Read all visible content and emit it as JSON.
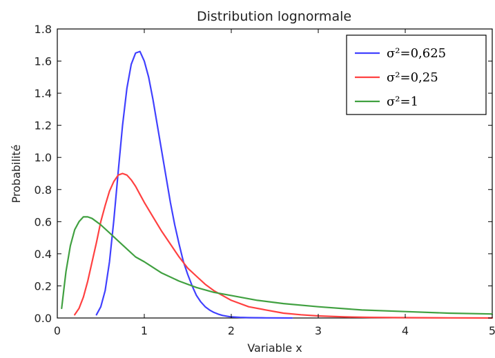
{
  "chart_data": {
    "type": "line",
    "title": "Distribution lognormale",
    "xlabel": "Variable x",
    "ylabel": "Probabilité",
    "xlim": [
      0,
      5
    ],
    "ylim": [
      0,
      1.8
    ],
    "xticks": [
      0,
      1,
      2,
      3,
      4,
      5
    ],
    "yticks": [
      0.0,
      0.2,
      0.4,
      0.6,
      0.8,
      1.0,
      1.2,
      1.4,
      1.6,
      1.8
    ],
    "xtick_labels": [
      "0",
      "1",
      "2",
      "3",
      "4",
      "5"
    ],
    "ytick_labels": [
      "0.0",
      "0.2",
      "0.4",
      "0.6",
      "0.8",
      "1.0",
      "1.2",
      "1.4",
      "1.6",
      "1.8"
    ],
    "grid": false,
    "legend_position": "top-right",
    "series": [
      {
        "name": "σ²=0,625",
        "color": "#4040ff",
        "x": [
          0.45,
          0.5,
          0.55,
          0.6,
          0.65,
          0.7,
          0.75,
          0.8,
          0.85,
          0.9,
          0.95,
          1.0,
          1.05,
          1.1,
          1.15,
          1.2,
          1.25,
          1.3,
          1.35,
          1.4,
          1.45,
          1.5,
          1.55,
          1.6,
          1.65,
          1.7,
          1.75,
          1.8,
          1.85,
          1.9,
          1.95,
          2.0,
          2.1,
          2.2,
          2.4,
          2.7
        ],
        "y": [
          0.02,
          0.07,
          0.17,
          0.35,
          0.61,
          0.91,
          1.2,
          1.43,
          1.58,
          1.65,
          1.66,
          1.6,
          1.5,
          1.36,
          1.2,
          1.04,
          0.88,
          0.72,
          0.58,
          0.46,
          0.35,
          0.27,
          0.2,
          0.14,
          0.1,
          0.07,
          0.05,
          0.035,
          0.024,
          0.016,
          0.011,
          0.007,
          0.004,
          0.002,
          0.001,
          0.0
        ]
      },
      {
        "name": "σ²=0,25",
        "color": "#ff4040",
        "x": [
          0.2,
          0.25,
          0.3,
          0.35,
          0.4,
          0.45,
          0.5,
          0.55,
          0.6,
          0.65,
          0.7,
          0.75,
          0.8,
          0.85,
          0.9,
          0.95,
          1.0,
          1.1,
          1.2,
          1.3,
          1.4,
          1.5,
          1.6,
          1.7,
          1.8,
          1.9,
          2.0,
          2.2,
          2.4,
          2.6,
          2.8,
          3.0,
          3.3,
          3.6,
          4.0,
          4.5,
          5.0
        ],
        "y": [
          0.02,
          0.06,
          0.13,
          0.23,
          0.35,
          0.47,
          0.6,
          0.7,
          0.79,
          0.85,
          0.89,
          0.9,
          0.89,
          0.86,
          0.82,
          0.77,
          0.72,
          0.63,
          0.54,
          0.46,
          0.38,
          0.31,
          0.26,
          0.21,
          0.17,
          0.14,
          0.11,
          0.07,
          0.05,
          0.03,
          0.02,
          0.013,
          0.007,
          0.004,
          0.002,
          0.001,
          0.0
        ]
      },
      {
        "name": "σ²=1",
        "color": "#40a040",
        "x": [
          0.05,
          0.08,
          0.1,
          0.15,
          0.2,
          0.25,
          0.3,
          0.35,
          0.4,
          0.45,
          0.5,
          0.6,
          0.7,
          0.8,
          0.9,
          1.0,
          1.2,
          1.4,
          1.6,
          1.8,
          2.0,
          2.3,
          2.6,
          3.0,
          3.5,
          4.0,
          4.5,
          5.0
        ],
        "y": [
          0.06,
          0.2,
          0.29,
          0.45,
          0.55,
          0.6,
          0.63,
          0.63,
          0.62,
          0.6,
          0.58,
          0.53,
          0.48,
          0.43,
          0.38,
          0.35,
          0.28,
          0.23,
          0.19,
          0.16,
          0.14,
          0.11,
          0.09,
          0.07,
          0.05,
          0.04,
          0.03,
          0.025
        ]
      }
    ]
  }
}
